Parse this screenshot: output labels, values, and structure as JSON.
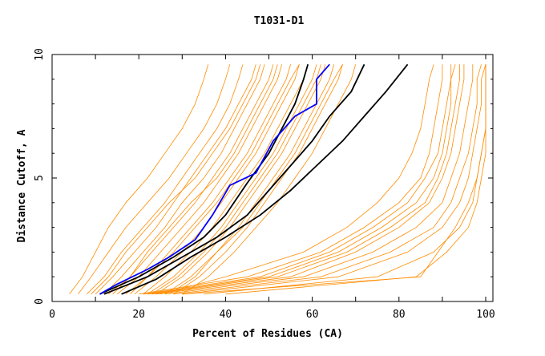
{
  "chart_data": {
    "type": "line",
    "title": "T1031-D1",
    "xlabel": "Percent of Residues (CA)",
    "ylabel": "Distance Cutoff, A",
    "xlim": [
      0,
      100
    ],
    "ylim": [
      0,
      10
    ],
    "xticks": [
      0,
      20,
      40,
      60,
      80,
      100
    ],
    "yticks": [
      0,
      5,
      10
    ],
    "grid": false,
    "colors": {
      "background": "#ffffff",
      "models": "#ff8c00",
      "highlight_black": "#000000",
      "highlight_blue": "#0000ff"
    },
    "y_levels": [
      0.3,
      1,
      2,
      3,
      4,
      5,
      6,
      7,
      8,
      9,
      9.6
    ],
    "model_series": [
      [
        4,
        7,
        10,
        13,
        17,
        22,
        26,
        30,
        33,
        35,
        36
      ],
      [
        6,
        9,
        13,
        17,
        22,
        27,
        31,
        35,
        38,
        40,
        41
      ],
      [
        8,
        12,
        16,
        21,
        26,
        30,
        34,
        38,
        41,
        43,
        44
      ],
      [
        10,
        14,
        19,
        24,
        28,
        32,
        36,
        40,
        43,
        46,
        47
      ],
      [
        12,
        16,
        21,
        26,
        30,
        35,
        39,
        42,
        45,
        48,
        49
      ],
      [
        14,
        18,
        23,
        28,
        33,
        37,
        41,
        44,
        47,
        50,
        51
      ],
      [
        15,
        20,
        25,
        30,
        35,
        39,
        43,
        46,
        49,
        52,
        53
      ],
      [
        17,
        22,
        27,
        32,
        37,
        41,
        45,
        48,
        51,
        54,
        55
      ],
      [
        19,
        24,
        30,
        35,
        39,
        43,
        47,
        50,
        53,
        56,
        57
      ],
      [
        21,
        26,
        32,
        37,
        41,
        45,
        49,
        52,
        55,
        58,
        59
      ],
      [
        22,
        28,
        34,
        39,
        43,
        47,
        51,
        54,
        57,
        60,
        61
      ],
      [
        24,
        30,
        36,
        41,
        45,
        49,
        53,
        56,
        59,
        62,
        63
      ],
      [
        26,
        32,
        38,
        43,
        47,
        51,
        55,
        58,
        61,
        64,
        65
      ],
      [
        28,
        34,
        40,
        45,
        49,
        53,
        57,
        60,
        63,
        66,
        67
      ],
      [
        30,
        36,
        42,
        47,
        52,
        56,
        60,
        63,
        66,
        69,
        70
      ],
      [
        9,
        13,
        17,
        22,
        27,
        33,
        37,
        41,
        44,
        47,
        48
      ],
      [
        13,
        18,
        22,
        27,
        32,
        38,
        42,
        45,
        48,
        51,
        52
      ],
      [
        18,
        22,
        28,
        33,
        38,
        42,
        46,
        49,
        52,
        55,
        57
      ],
      [
        23,
        29,
        35,
        40,
        44,
        48,
        52,
        55,
        58,
        61,
        62
      ],
      [
        27,
        33,
        38,
        44,
        48,
        52,
        56,
        59,
        62,
        65,
        67
      ],
      [
        20,
        45,
        62,
        72,
        80,
        85,
        87,
        88,
        89,
        90,
        90
      ],
      [
        22,
        50,
        66,
        76,
        84,
        88,
        90,
        91,
        92,
        92,
        93
      ],
      [
        24,
        55,
        70,
        80,
        87,
        90,
        92,
        93,
        94,
        95,
        95
      ],
      [
        26,
        58,
        74,
        84,
        90,
        92,
        94,
        95,
        96,
        97,
        97
      ],
      [
        28,
        62,
        78,
        88,
        92,
        94,
        96,
        97,
        98,
        98,
        99
      ],
      [
        30,
        66,
        82,
        90,
        94,
        96,
        97,
        98,
        99,
        99,
        100
      ],
      [
        25,
        40,
        58,
        68,
        75,
        80,
        83,
        85,
        86,
        87,
        88
      ],
      [
        35,
        75,
        88,
        94,
        97,
        98,
        99,
        100,
        100,
        100,
        100
      ],
      [
        40,
        84,
        91,
        96,
        98,
        99,
        100,
        100,
        100,
        100,
        100
      ],
      [
        23,
        52,
        68,
        78,
        86,
        89,
        91,
        92,
        93,
        94,
        94
      ],
      [
        30,
        85,
        89,
        93,
        96,
        98,
        99,
        100,
        100,
        100,
        100
      ],
      [
        21,
        48,
        64,
        74,
        82,
        86,
        89,
        90,
        91,
        92,
        92
      ]
    ],
    "highlight_series": [
      {
        "color": "#000000",
        "points": [
          [
            11,
            0.3
          ],
          [
            20,
            1
          ],
          [
            28,
            1.8
          ],
          [
            35,
            2.6
          ],
          [
            40,
            3.5
          ],
          [
            45,
            4.8
          ],
          [
            50,
            6
          ],
          [
            53,
            7
          ],
          [
            56,
            8
          ],
          [
            58,
            9
          ],
          [
            59,
            9.6
          ]
        ]
      },
      {
        "color": "#000000",
        "points": [
          [
            12,
            0.3
          ],
          [
            22,
            1
          ],
          [
            30,
            1.8
          ],
          [
            38,
            2.6
          ],
          [
            45,
            3.5
          ],
          [
            50,
            4.5
          ],
          [
            55,
            5.5
          ],
          [
            60,
            6.5
          ],
          [
            64,
            7.5
          ],
          [
            69,
            8.5
          ],
          [
            72,
            9.6
          ]
        ]
      },
      {
        "color": "#000000",
        "points": [
          [
            16,
            0.3
          ],
          [
            24,
            0.9
          ],
          [
            32,
            1.8
          ],
          [
            40,
            2.6
          ],
          [
            48,
            3.5
          ],
          [
            55,
            4.5
          ],
          [
            61,
            5.5
          ],
          [
            67,
            6.5
          ],
          [
            72,
            7.5
          ],
          [
            77,
            8.5
          ],
          [
            82,
            9.6
          ]
        ]
      },
      {
        "color": "#0000ff",
        "points": [
          [
            11,
            0.3
          ],
          [
            15,
            0.7
          ],
          [
            22,
            1.3
          ],
          [
            27,
            1.8
          ],
          [
            33,
            2.5
          ],
          [
            37,
            3.5
          ],
          [
            41,
            4.7
          ],
          [
            47,
            5.2
          ],
          [
            51,
            6.5
          ],
          [
            56,
            7.5
          ],
          [
            61,
            8
          ],
          [
            61,
            9
          ],
          [
            64,
            9.6
          ]
        ]
      }
    ]
  }
}
